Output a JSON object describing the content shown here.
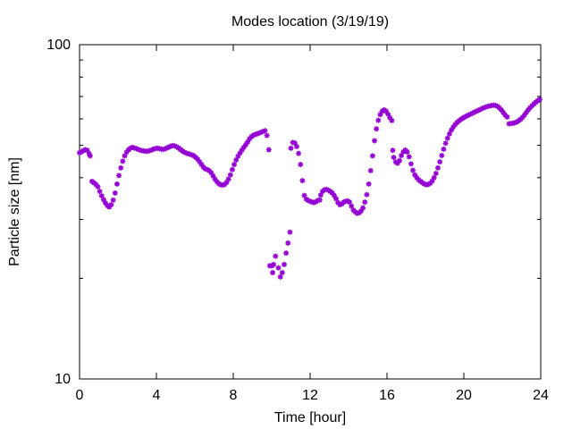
{
  "chart_data": {
    "type": "scatter",
    "title": "Modes location (3/19/19)",
    "xlabel": "Time [hour]",
    "ylabel": "Particle size [nm]",
    "xlim": [
      0,
      24
    ],
    "ylim": [
      10,
      100
    ],
    "y_scale": "log",
    "x_ticks": [
      0,
      4,
      8,
      12,
      16,
      20,
      24
    ],
    "x_tick_labels": [
      "0",
      "4",
      "8",
      "12",
      "16",
      "20",
      "24"
    ],
    "y_ticks": [
      10,
      100
    ],
    "y_tick_labels": [
      "10",
      "100"
    ],
    "grid": false,
    "legend": false,
    "marker_color": "#9400d3",
    "marker": "asterisk",
    "series": [
      {
        "points": [
          [
            0.0,
            47.5
          ],
          [
            0.1,
            47.8
          ],
          [
            0.2,
            48.2
          ],
          [
            0.3,
            48.5
          ],
          [
            0.4,
            48.3
          ],
          [
            0.5,
            47.2
          ],
          [
            0.55,
            46.5
          ],
          [
            0.65,
            39.0
          ],
          [
            0.75,
            38.6
          ],
          [
            0.85,
            38.2
          ],
          [
            0.95,
            37.6
          ],
          [
            1.05,
            36.4
          ],
          [
            1.15,
            35.3
          ],
          [
            1.25,
            34.4
          ],
          [
            1.35,
            33.6
          ],
          [
            1.45,
            33.0
          ],
          [
            1.55,
            32.7
          ],
          [
            1.65,
            33.2
          ],
          [
            1.75,
            34.3
          ],
          [
            1.85,
            36.0
          ],
          [
            1.95,
            38.3
          ],
          [
            2.05,
            40.6
          ],
          [
            2.15,
            42.8
          ],
          [
            2.25,
            44.8
          ],
          [
            2.35,
            46.5
          ],
          [
            2.45,
            47.7
          ],
          [
            2.55,
            48.5
          ],
          [
            2.65,
            49.0
          ],
          [
            2.75,
            49.3
          ],
          [
            2.85,
            49.1
          ],
          [
            2.95,
            48.9
          ],
          [
            3.05,
            48.6
          ],
          [
            3.15,
            48.4
          ],
          [
            3.25,
            48.2
          ],
          [
            3.35,
            48.1
          ],
          [
            3.45,
            48.0
          ],
          [
            3.55,
            48.0
          ],
          [
            3.65,
            48.2
          ],
          [
            3.75,
            48.4
          ],
          [
            3.85,
            48.7
          ],
          [
            3.95,
            48.9
          ],
          [
            4.05,
            49.0
          ],
          [
            4.15,
            48.9
          ],
          [
            4.25,
            48.7
          ],
          [
            4.35,
            48.6
          ],
          [
            4.45,
            48.8
          ],
          [
            4.55,
            49.1
          ],
          [
            4.65,
            49.4
          ],
          [
            4.75,
            49.7
          ],
          [
            4.85,
            49.9
          ],
          [
            4.95,
            49.8
          ],
          [
            5.05,
            49.5
          ],
          [
            5.15,
            49.1
          ],
          [
            5.25,
            48.6
          ],
          [
            5.35,
            48.1
          ],
          [
            5.45,
            47.7
          ],
          [
            5.55,
            47.4
          ],
          [
            5.65,
            47.2
          ],
          [
            5.75,
            47.0
          ],
          [
            5.85,
            46.8
          ],
          [
            5.95,
            46.5
          ],
          [
            6.05,
            46.0
          ],
          [
            6.15,
            45.4
          ],
          [
            6.25,
            44.6
          ],
          [
            6.35,
            43.8
          ],
          [
            6.45,
            43.0
          ],
          [
            6.55,
            42.5
          ],
          [
            6.65,
            42.3
          ],
          [
            6.75,
            42.0
          ],
          [
            6.85,
            41.4
          ],
          [
            6.95,
            40.5
          ],
          [
            7.05,
            39.6
          ],
          [
            7.15,
            38.9
          ],
          [
            7.25,
            38.4
          ],
          [
            7.35,
            38.1
          ],
          [
            7.45,
            38.0
          ],
          [
            7.55,
            38.2
          ],
          [
            7.65,
            38.7
          ],
          [
            7.75,
            39.6
          ],
          [
            7.85,
            40.8
          ],
          [
            7.95,
            42.3
          ],
          [
            8.05,
            43.8
          ],
          [
            8.15,
            45.2
          ],
          [
            8.25,
            46.4
          ],
          [
            8.35,
            47.4
          ],
          [
            8.45,
            48.4
          ],
          [
            8.55,
            49.3
          ],
          [
            8.65,
            50.2
          ],
          [
            8.75,
            51.2
          ],
          [
            8.85,
            52.3
          ],
          [
            8.95,
            53.1
          ],
          [
            9.05,
            53.6
          ],
          [
            9.15,
            53.9
          ],
          [
            9.25,
            54.1
          ],
          [
            9.35,
            54.4
          ],
          [
            9.45,
            54.7
          ],
          [
            9.55,
            55.0
          ],
          [
            9.65,
            55.3
          ],
          [
            9.75,
            53.5
          ],
          [
            9.85,
            48.5
          ],
          [
            9.9,
            21.8
          ],
          [
            10.0,
            21.8
          ],
          [
            10.05,
            20.8
          ],
          [
            10.1,
            22.0
          ],
          [
            10.2,
            23.3
          ],
          [
            10.35,
            21.5
          ],
          [
            10.45,
            20.2
          ],
          [
            10.55,
            20.8
          ],
          [
            10.65,
            22.0
          ],
          [
            10.75,
            23.8
          ],
          [
            10.85,
            25.5
          ],
          [
            10.95,
            27.5
          ],
          [
            11.0,
            49.0
          ],
          [
            11.1,
            51.0
          ],
          [
            11.2,
            50.8
          ],
          [
            11.3,
            49.6
          ],
          [
            11.4,
            47.3
          ],
          [
            11.5,
            43.8
          ],
          [
            11.6,
            39.2
          ],
          [
            11.7,
            35.4
          ],
          [
            11.8,
            34.5
          ],
          [
            11.9,
            34.2
          ],
          [
            12.0,
            34.0
          ],
          [
            12.1,
            33.8
          ],
          [
            12.2,
            33.7
          ],
          [
            12.3,
            33.9
          ],
          [
            12.4,
            34.2
          ],
          [
            12.5,
            34.3
          ],
          [
            12.55,
            35.5
          ],
          [
            12.65,
            36.4
          ],
          [
            12.75,
            36.8
          ],
          [
            12.85,
            36.9
          ],
          [
            12.95,
            36.7
          ],
          [
            13.05,
            36.4
          ],
          [
            13.15,
            36.0
          ],
          [
            13.25,
            35.4
          ],
          [
            13.35,
            34.6
          ],
          [
            13.45,
            33.7
          ],
          [
            13.55,
            33.2
          ],
          [
            13.65,
            33.4
          ],
          [
            13.75,
            33.8
          ],
          [
            13.85,
            34.0
          ],
          [
            13.95,
            34.1
          ],
          [
            14.05,
            33.8
          ],
          [
            14.15,
            32.9
          ],
          [
            14.25,
            32.0
          ],
          [
            14.35,
            31.6
          ],
          [
            14.45,
            31.3
          ],
          [
            14.55,
            31.4
          ],
          [
            14.65,
            31.8
          ],
          [
            14.75,
            32.5
          ],
          [
            14.85,
            33.8
          ],
          [
            14.95,
            35.6
          ],
          [
            15.05,
            38.3
          ],
          [
            15.15,
            42.0
          ],
          [
            15.25,
            46.5
          ],
          [
            15.35,
            51.6
          ],
          [
            15.45,
            56.0
          ],
          [
            15.55,
            59.4
          ],
          [
            15.65,
            61.8
          ],
          [
            15.75,
            63.2
          ],
          [
            15.85,
            63.8
          ],
          [
            15.95,
            63.3
          ],
          [
            16.05,
            62.0
          ],
          [
            16.15,
            60.5
          ],
          [
            16.25,
            59.3
          ],
          [
            16.3,
            48.3
          ],
          [
            16.35,
            46.0
          ],
          [
            16.45,
            44.6
          ],
          [
            16.55,
            44.2
          ],
          [
            16.65,
            45.0
          ],
          [
            16.75,
            46.6
          ],
          [
            16.85,
            47.8
          ],
          [
            16.95,
            48.4
          ],
          [
            17.05,
            47.8
          ],
          [
            17.15,
            46.2
          ],
          [
            17.25,
            44.0
          ],
          [
            17.35,
            42.1
          ],
          [
            17.45,
            40.8
          ],
          [
            17.55,
            40.0
          ],
          [
            17.65,
            39.4
          ],
          [
            17.75,
            39.0
          ],
          [
            17.85,
            38.6
          ],
          [
            17.95,
            38.3
          ],
          [
            18.05,
            38.1
          ],
          [
            18.15,
            38.2
          ],
          [
            18.25,
            38.5
          ],
          [
            18.35,
            39.1
          ],
          [
            18.45,
            40.0
          ],
          [
            18.55,
            41.2
          ],
          [
            18.65,
            42.8
          ],
          [
            18.75,
            44.6
          ],
          [
            18.85,
            46.6
          ],
          [
            18.95,
            48.7
          ],
          [
            19.05,
            50.7
          ],
          [
            19.15,
            52.5
          ],
          [
            19.25,
            54.1
          ],
          [
            19.35,
            55.5
          ],
          [
            19.45,
            56.7
          ],
          [
            19.55,
            57.7
          ],
          [
            19.65,
            58.5
          ],
          [
            19.75,
            59.2
          ],
          [
            19.85,
            59.8
          ],
          [
            19.95,
            60.3
          ],
          [
            20.05,
            60.8
          ],
          [
            20.15,
            61.2
          ],
          [
            20.25,
            61.6
          ],
          [
            20.35,
            62.0
          ],
          [
            20.45,
            62.4
          ],
          [
            20.55,
            62.8
          ],
          [
            20.65,
            63.2
          ],
          [
            20.75,
            63.6
          ],
          [
            20.85,
            64.0
          ],
          [
            20.95,
            64.4
          ],
          [
            21.05,
            64.8
          ],
          [
            21.15,
            65.1
          ],
          [
            21.25,
            65.4
          ],
          [
            21.35,
            65.6
          ],
          [
            21.45,
            65.8
          ],
          [
            21.55,
            65.9
          ],
          [
            21.65,
            65.8
          ],
          [
            21.75,
            65.4
          ],
          [
            21.85,
            64.7
          ],
          [
            21.95,
            63.8
          ],
          [
            22.05,
            62.7
          ],
          [
            22.15,
            61.6
          ],
          [
            22.25,
            60.8
          ],
          [
            22.35,
            58.0
          ],
          [
            22.45,
            58.1
          ],
          [
            22.55,
            58.2
          ],
          [
            22.65,
            58.4
          ],
          [
            22.75,
            58.7
          ],
          [
            22.85,
            59.2
          ],
          [
            22.95,
            59.8
          ],
          [
            23.05,
            60.6
          ],
          [
            23.15,
            61.6
          ],
          [
            23.25,
            62.7
          ],
          [
            23.35,
            63.8
          ],
          [
            23.45,
            64.8
          ],
          [
            23.55,
            65.7
          ],
          [
            23.65,
            66.5
          ],
          [
            23.75,
            67.3
          ],
          [
            23.85,
            68.0
          ],
          [
            23.95,
            68.6
          ]
        ]
      }
    ]
  }
}
